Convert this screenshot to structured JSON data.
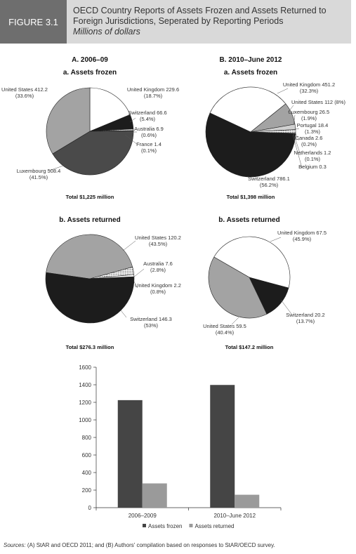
{
  "header": {
    "label": "FIGURE 3.1",
    "title": "OECD Country Reports of Assets Frozen and Assets Returned to Foreign Jurisdictions, Seperated by Reporting Periods",
    "subtitle": "Millions of dollars"
  },
  "chart_data": [
    {
      "type": "pie",
      "panel": "A. 2006–09",
      "title": "a. Assets frozen",
      "total": "Total $1,225 million",
      "categories": [
        "United Kingdom",
        "Switzerland",
        "Australia",
        "France",
        "Luxembourg",
        "United States"
      ],
      "values": [
        229.6,
        66.6,
        6.9,
        1.4,
        508.4,
        412.2
      ],
      "percent_labels": [
        "(18.7%)",
        "(5.4%)",
        "(0.6%)",
        "(0.1%)",
        "(41.5%)",
        "(33.6%)"
      ],
      "colors": [
        "#ffffff",
        "#1c1c1c",
        "dotted",
        "#ffffff",
        "#4a4a4a",
        "#a3a3a3"
      ]
    },
    {
      "type": "pie",
      "panel": "B. 2010–June 2012",
      "title": "a. Assets frozen",
      "total": "Total $1,398 million",
      "categories": [
        "United Kingdom",
        "United States",
        "Luxembourg",
        "Portugal",
        "Canada",
        "Netherlands",
        "Belgium",
        "Switzerland"
      ],
      "values": [
        451.2,
        112,
        26.5,
        18.4,
        2.6,
        1.2,
        0.3,
        786.1
      ],
      "percent_labels": [
        "(32.3%)",
        "(8%)",
        "(1.9%)",
        "(1.3%)",
        "(0.2%)",
        "(0.1%)",
        null,
        "(56.2%)"
      ],
      "colors": [
        "#ffffff",
        "#a3a3a3",
        "#d0d0d0",
        "dotted",
        "#ffffff",
        "#ffffff",
        "#ffffff",
        "#1c1c1c"
      ]
    },
    {
      "type": "pie",
      "title": "b. Assets returned",
      "total": "Total $276.3 million",
      "categories": [
        "United States",
        "Australia",
        "United Kingdom",
        "Switzerland"
      ],
      "values": [
        120.2,
        7.6,
        2.2,
        146.3
      ],
      "percent_labels": [
        "(43.5%)",
        "(2.8%)",
        "(0.8%)",
        "(53%)"
      ],
      "colors": [
        "#a3a3a3",
        "dotted",
        "#ffffff",
        "#1c1c1c"
      ]
    },
    {
      "type": "pie",
      "title": "b. Assets returned",
      "total": "Total $147.2 million",
      "categories": [
        "United Kingdom",
        "Switzerland",
        "United States"
      ],
      "values": [
        67.5,
        20.2,
        59.5
      ],
      "percent_labels": [
        "(45.9%)",
        "(13.7%)",
        "(40.4%)"
      ],
      "colors": [
        "#ffffff",
        "#1c1c1c",
        "#a3a3a3"
      ]
    },
    {
      "type": "bar",
      "categories": [
        "2006–2009",
        "2010–June 2012"
      ],
      "series": [
        {
          "name": "Assets frozen",
          "color": "#454545",
          "values": [
            1225,
            1398
          ]
        },
        {
          "name": "Assets returned",
          "color": "#9a9a9a",
          "values": [
            276.3,
            147.2
          ]
        }
      ],
      "ylim": [
        0,
        1600
      ],
      "yticks": [
        0,
        200,
        400,
        600,
        800,
        1000,
        1200,
        1400,
        1600
      ],
      "legend": "bottom"
    }
  ],
  "sources_label": "Sources:",
  "sources": "(A) StAR and OECD 2011; and (B) Authors' compilation based on responses to StAR/OECD survey."
}
